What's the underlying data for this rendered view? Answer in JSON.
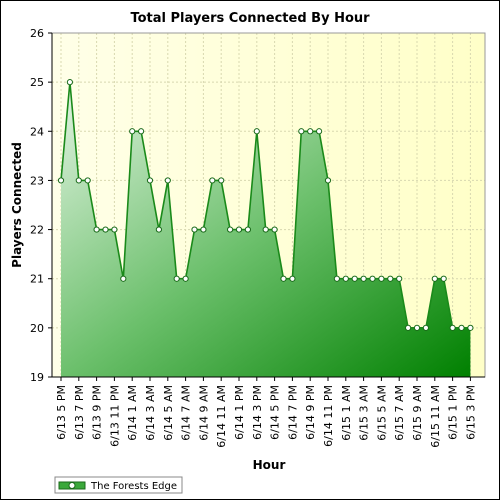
{
  "chart_data": {
    "type": "area",
    "title": "Total Players Connected By Hour",
    "xlabel": "Hour",
    "ylabel": "Players Connected",
    "ylim": [
      19,
      26
    ],
    "yticks": [
      "19",
      "20",
      "21",
      "22",
      "23",
      "24",
      "25",
      "26"
    ],
    "grid": true,
    "legend_position": "bottom-left",
    "colors": {
      "line": "#1a8a1a",
      "fill_light": "#d8eed8",
      "fill_dark": "#0a8a0a",
      "plot_bg": "#ffffd8",
      "grid": "#d8d8b0"
    },
    "x": [
      "6/13 5 PM",
      "6/13 6 PM",
      "6/13 7 PM",
      "6/13 8 PM",
      "6/13 9 PM",
      "6/13 10 PM",
      "6/13 11 PM",
      "6/14 12 AM",
      "6/14 1 AM",
      "6/14 2 AM",
      "6/14 3 AM",
      "6/14 4 AM",
      "6/14 5 AM",
      "6/14 6 AM",
      "6/14 7 AM",
      "6/14 8 AM",
      "6/14 9 AM",
      "6/14 10 AM",
      "6/14 11 AM",
      "6/14 12 PM",
      "6/14 1 PM",
      "6/14 2 PM",
      "6/14 3 PM",
      "6/14 4 PM",
      "6/14 5 PM",
      "6/14 6 PM",
      "6/14 7 PM",
      "6/14 8 PM",
      "6/14 9 PM",
      "6/14 10 PM",
      "6/14 11 PM",
      "6/15 12 AM",
      "6/15 1 AM",
      "6/15 2 AM",
      "6/15 3 AM",
      "6/15 4 AM",
      "6/15 5 AM",
      "6/15 6 AM",
      "6/15 7 AM",
      "6/15 8 AM",
      "6/15 9 AM",
      "6/15 10 AM",
      "6/15 11 AM",
      "6/15 12 PM",
      "6/15 1 PM",
      "6/15 2 PM",
      "6/15 3 PM"
    ],
    "x_tick_labels": [
      "6/13 5 PM",
      "6/13 7 PM",
      "6/13 9 PM",
      "6/13 11 PM",
      "6/14 1 AM",
      "6/14 3 AM",
      "6/14 5 AM",
      "6/14 7 AM",
      "6/14 9 AM",
      "6/14 11 AM",
      "6/14 1 PM",
      "6/14 3 PM",
      "6/14 5 PM",
      "6/14 7 PM",
      "6/14 9 PM",
      "6/14 11 PM",
      "6/15 1 AM",
      "6/15 3 AM",
      "6/15 5 AM",
      "6/15 7 AM",
      "6/15 9 AM",
      "6/15 11 AM",
      "6/15 1 PM",
      "6/15 3 PM"
    ],
    "series": [
      {
        "name": "The Forests Edge",
        "values": [
          23,
          25,
          23,
          23,
          22,
          22,
          22,
          21,
          24,
          24,
          23,
          22,
          23,
          21,
          21,
          22,
          22,
          23,
          23,
          22,
          22,
          22,
          24,
          22,
          22,
          21,
          21,
          24,
          24,
          24,
          23,
          21,
          21,
          21,
          21,
          21,
          21,
          21,
          21,
          20,
          20,
          20,
          21,
          21,
          20,
          20,
          20
        ]
      }
    ]
  }
}
